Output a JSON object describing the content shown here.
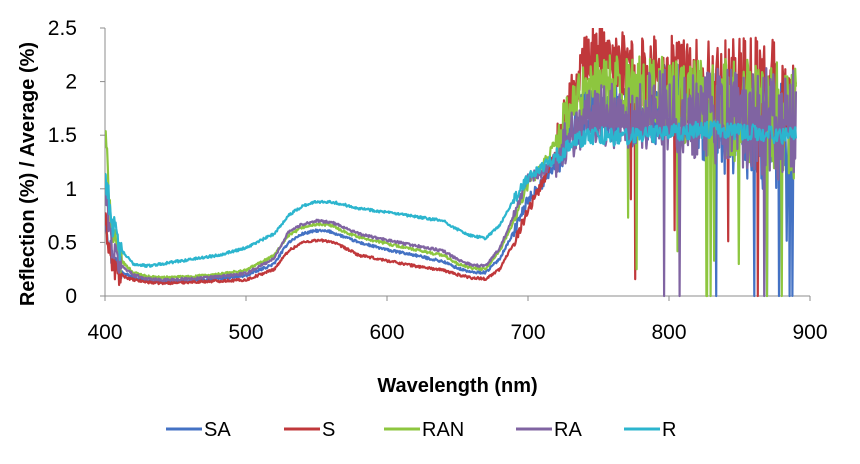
{
  "chart_data": {
    "type": "line",
    "title": "",
    "xlabel": "Wavelength (nm)",
    "ylabel": "Reflection (%) / Average (%)",
    "xlim": [
      400,
      900
    ],
    "ylim": [
      0,
      2.5
    ],
    "x_ticks": [
      "400",
      "500",
      "600",
      "700",
      "800",
      "900"
    ],
    "y_ticks": [
      "0",
      "0.5",
      "1",
      "1.5",
      "2",
      "2.5"
    ],
    "grid": false,
    "legend_position": "bottom",
    "x": [
      400,
      405,
      410,
      420,
      430,
      440,
      460,
      480,
      500,
      520,
      530,
      540,
      550,
      560,
      570,
      580,
      600,
      620,
      640,
      650,
      660,
      670,
      680,
      690,
      700,
      710,
      720,
      730,
      740,
      750,
      760,
      780,
      800,
      820,
      840,
      860,
      880,
      890
    ],
    "series": [
      {
        "name": "SA",
        "color": "#4472C4",
        "values": [
          0.75,
          0.35,
          0.25,
          0.17,
          0.14,
          0.13,
          0.14,
          0.16,
          0.19,
          0.3,
          0.5,
          0.58,
          0.61,
          0.6,
          0.55,
          0.5,
          0.43,
          0.38,
          0.32,
          0.26,
          0.22,
          0.22,
          0.35,
          0.6,
          0.9,
          1.05,
          1.25,
          1.55,
          1.7,
          1.75,
          1.68,
          1.72,
          1.8,
          1.7,
          1.6,
          1.55,
          1.45,
          1.5
        ]
      },
      {
        "name": "S",
        "color": "#C0383B",
        "values": [
          0.7,
          0.3,
          0.2,
          0.15,
          0.13,
          0.12,
          0.13,
          0.14,
          0.15,
          0.25,
          0.42,
          0.5,
          0.52,
          0.51,
          0.45,
          0.38,
          0.33,
          0.28,
          0.24,
          0.2,
          0.17,
          0.16,
          0.25,
          0.5,
          0.8,
          1.05,
          1.35,
          1.8,
          2.15,
          2.3,
          2.25,
          2.1,
          2.05,
          2.0,
          1.95,
          1.9,
          1.95,
          1.9
        ]
      },
      {
        "name": "RAN",
        "color": "#8DC63F",
        "values": [
          1.55,
          0.6,
          0.35,
          0.22,
          0.18,
          0.17,
          0.18,
          0.2,
          0.24,
          0.38,
          0.56,
          0.64,
          0.67,
          0.66,
          0.6,
          0.55,
          0.49,
          0.43,
          0.38,
          0.3,
          0.26,
          0.25,
          0.42,
          0.7,
          1.05,
          1.2,
          1.45,
          1.7,
          1.9,
          2.0,
          1.95,
          1.9,
          1.85,
          1.8,
          1.75,
          1.7,
          1.65,
          1.6
        ]
      },
      {
        "name": "RA",
        "color": "#8064A2",
        "values": [
          1.0,
          0.45,
          0.3,
          0.2,
          0.16,
          0.15,
          0.16,
          0.18,
          0.21,
          0.35,
          0.6,
          0.67,
          0.7,
          0.69,
          0.64,
          0.58,
          0.52,
          0.47,
          0.42,
          0.34,
          0.29,
          0.28,
          0.45,
          0.75,
          1.1,
          1.15,
          1.3,
          1.5,
          1.65,
          1.7,
          1.68,
          1.72,
          1.75,
          1.7,
          1.65,
          1.62,
          1.6,
          1.6
        ]
      },
      {
        "name": "R",
        "color": "#2CB5CE",
        "values": [
          1.15,
          0.7,
          0.45,
          0.3,
          0.28,
          0.3,
          0.34,
          0.38,
          0.45,
          0.58,
          0.75,
          0.84,
          0.88,
          0.88,
          0.85,
          0.82,
          0.78,
          0.74,
          0.7,
          0.62,
          0.56,
          0.54,
          0.66,
          0.9,
          1.1,
          1.2,
          1.3,
          1.4,
          1.48,
          1.5,
          1.48,
          1.5,
          1.52,
          1.55,
          1.55,
          1.52,
          1.5,
          1.5
        ]
      }
    ]
  }
}
